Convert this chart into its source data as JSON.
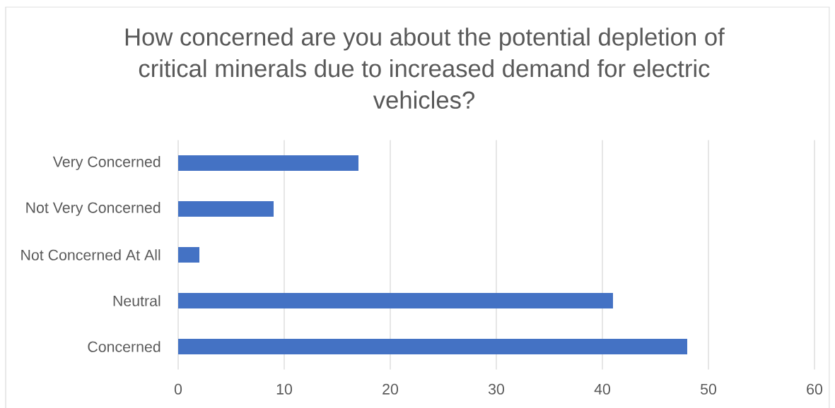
{
  "chart_data": {
    "type": "bar",
    "orientation": "horizontal",
    "title": "How concerned are you about the potential depletion of critical minerals due to increased demand for electric vehicles?",
    "categories": [
      "Very Concerned",
      "Not Very Concerned",
      "Not Concerned At All",
      "Neutral",
      "Concerned"
    ],
    "values": [
      17,
      9,
      2,
      41,
      48
    ],
    "color": "#4472c4",
    "xlim": [
      0,
      60
    ],
    "xticks": [
      0,
      10,
      20,
      30,
      40,
      50,
      60
    ],
    "grid": true
  }
}
